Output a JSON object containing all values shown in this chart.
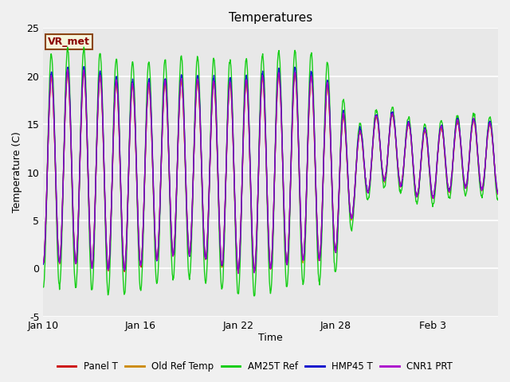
{
  "title": "Temperatures",
  "xlabel": "Time",
  "ylabel": "Temperature (C)",
  "ylim": [
    -5,
    25
  ],
  "background_color": "#f0f0f0",
  "plot_bg_color": "#e8e8e8",
  "grid_color": "#ffffff",
  "annotation_label": "VR_met",
  "annotation_color": "#8b0000",
  "annotation_bg": "#f5f5dc",
  "annotation_border": "#8b4513",
  "series": [
    {
      "name": "Panel T",
      "color": "#cc0000",
      "lw": 1.0
    },
    {
      "name": "Old Ref Temp",
      "color": "#cc8800",
      "lw": 1.0
    },
    {
      "name": "AM25T Ref",
      "color": "#00cc00",
      "lw": 1.0
    },
    {
      "name": "HMP45 T",
      "color": "#0000cc",
      "lw": 1.0
    },
    {
      "name": "CNR1 PRT",
      "color": "#aa00cc",
      "lw": 1.0
    }
  ],
  "xtick_labels": [
    "Jan 10",
    "Jan 16",
    "Jan 22",
    "Jan 28",
    "Feb 3"
  ],
  "xtick_positions": [
    0,
    6,
    12,
    18,
    24
  ],
  "ytick_labels": [
    "-5",
    "0",
    "5",
    "10",
    "15",
    "20",
    "25"
  ],
  "ytick_values": [
    -5,
    0,
    5,
    10,
    15,
    20,
    25
  ],
  "figsize": [
    6.4,
    4.8
  ],
  "dpi": 100
}
